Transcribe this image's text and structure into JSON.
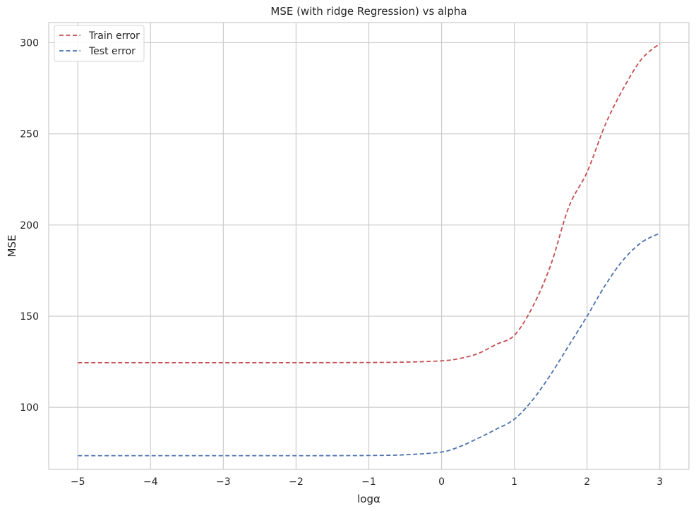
{
  "chart_data": {
    "type": "line",
    "title": "MSE (with ridge Regression) vs alpha",
    "xlabel": "logα",
    "ylabel": "MSE",
    "xlim": [
      -5.4,
      3.4
    ],
    "ylim": [
      66,
      311
    ],
    "xticks": [
      -5,
      -4,
      -3,
      -2,
      -1,
      0,
      1,
      2,
      3
    ],
    "xtick_labels": [
      "−5",
      "−4",
      "−3",
      "−2",
      "−1",
      "0",
      "1",
      "2",
      "3"
    ],
    "yticks": [
      100,
      150,
      200,
      250,
      300
    ],
    "ytick_labels": [
      "100",
      "150",
      "200",
      "250",
      "300"
    ],
    "grid": true,
    "legend_position": "top-left",
    "series": [
      {
        "name": "Train error",
        "color": "#c44e52",
        "line_style": "dashed",
        "x": [
          -5,
          -4,
          -3,
          -2,
          -1,
          -0.5,
          0,
          0.25,
          0.5,
          0.75,
          1,
          1.25,
          1.5,
          1.75,
          2,
          2.25,
          2.5,
          2.75,
          3
        ],
        "y": [
          124.5,
          124.5,
          124.5,
          124.5,
          124.6,
          124.8,
          125.5,
          126.8,
          129.5,
          134.5,
          139.5,
          155,
          178,
          210,
          229,
          255,
          275,
          291,
          299.5
        ]
      },
      {
        "name": "Test error",
        "color": "#4c72b0",
        "line_style": "dashed",
        "x": [
          -5,
          -4,
          -3,
          -2,
          -1,
          -0.5,
          0,
          0.25,
          0.5,
          0.75,
          1,
          1.25,
          1.5,
          1.75,
          2,
          2.25,
          2.5,
          2.75,
          3
        ],
        "y": [
          73.5,
          73.5,
          73.5,
          73.5,
          73.6,
          74,
          75.5,
          78.5,
          83,
          88,
          93.5,
          104,
          118,
          134,
          150,
          167,
          181,
          190.5,
          195.5
        ]
      }
    ]
  }
}
